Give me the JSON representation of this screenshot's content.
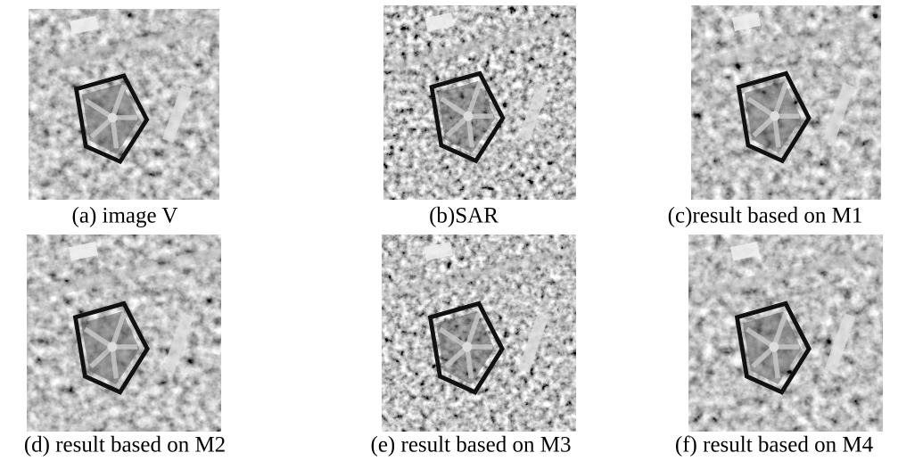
{
  "figure": {
    "panels": [
      {
        "caption": "(a) image V"
      },
      {
        "caption": "(b)SAR"
      },
      {
        "caption": "(c)result based on M1"
      },
      {
        "caption": "(d) result based on M2"
      },
      {
        "caption": "(e) result based on M3"
      },
      {
        "caption": "(f) result based on M4"
      }
    ]
  }
}
